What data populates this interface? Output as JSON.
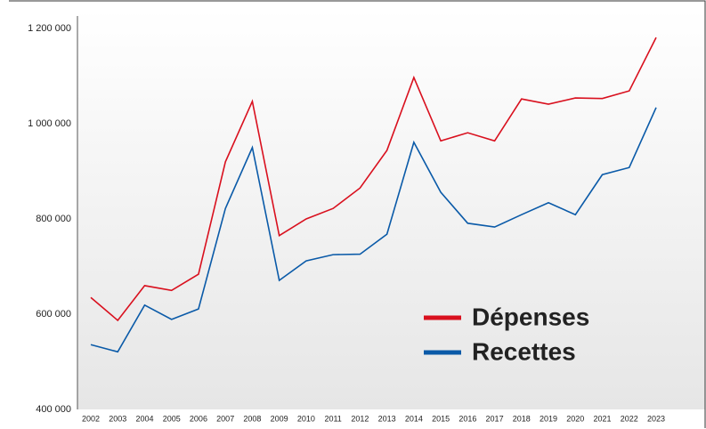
{
  "chart_data": {
    "type": "line",
    "categories": [
      "2002",
      "2003",
      "2004",
      "2005",
      "2006",
      "2007",
      "2008",
      "2009",
      "2010",
      "2011",
      "2012",
      "2013",
      "2014",
      "2015",
      "2016",
      "2017",
      "2018",
      "2019",
      "2020",
      "2021",
      "2022",
      "2023"
    ],
    "series": [
      {
        "name": "Dépenses",
        "color": "#d9101e",
        "values": [
          635000,
          587000,
          660000,
          650000,
          684000,
          920000,
          1047000,
          765000,
          800000,
          822000,
          865000,
          944000,
          1097000,
          964000,
          981000,
          964000,
          1052000,
          1041000,
          1054000,
          1053000,
          1069000,
          1181000
        ]
      },
      {
        "name": "Recettes",
        "color": "#0a5aa8",
        "values": [
          536000,
          521000,
          619000,
          589000,
          611000,
          822000,
          950000,
          671000,
          712000,
          725000,
          726000,
          768000,
          961000,
          856000,
          791000,
          783000,
          809000,
          834000,
          809000,
          893000,
          908000,
          1034000
        ]
      }
    ],
    "ylim": [
      400000,
      1200000
    ],
    "yticks": [
      {
        "value": 400000,
        "label": "400 000"
      },
      {
        "value": 600000,
        "label": "600 000"
      },
      {
        "value": 800000,
        "label": "800 000"
      },
      {
        "value": 1000000,
        "label": "1 000 000"
      },
      {
        "value": 1200000,
        "label": "1 200 000"
      }
    ],
    "legend": "lower right"
  }
}
